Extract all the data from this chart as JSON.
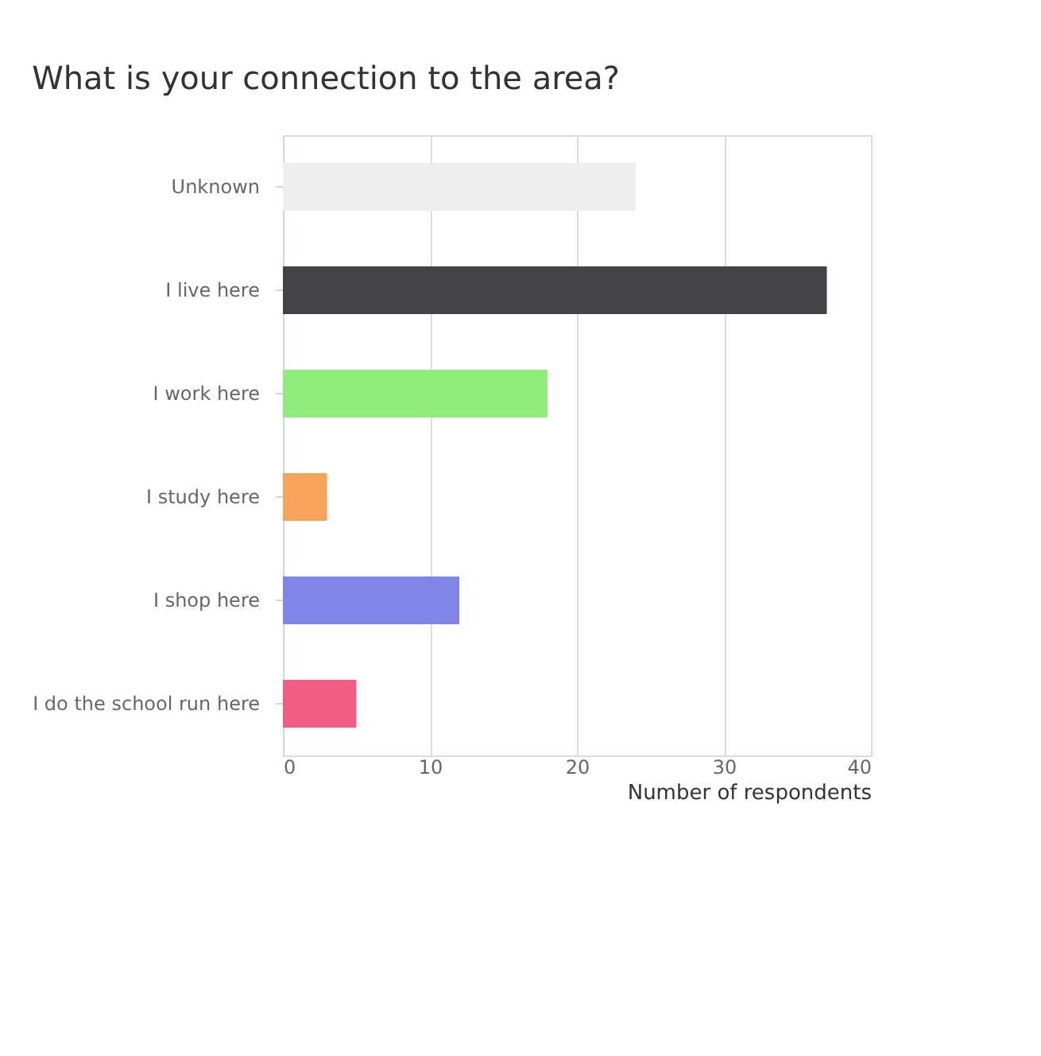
{
  "chart_data": {
    "type": "bar",
    "orientation": "horizontal",
    "title": "What is your connection to the area?",
    "categories": [
      "Unknown",
      "I live here",
      "I work here",
      "I study here",
      "I shop here",
      "I do the school run here"
    ],
    "values": [
      24,
      37,
      18,
      3,
      12,
      5
    ],
    "colors": [
      "#eeeeee",
      "#434348",
      "#90ed7d",
      "#f7a35c",
      "#8085e9",
      "#f15c80"
    ],
    "xlabel": "Number of respondents",
    "xlim": [
      0,
      40
    ],
    "xticks": [
      0,
      10,
      20,
      30,
      40
    ],
    "grid": "x"
  }
}
